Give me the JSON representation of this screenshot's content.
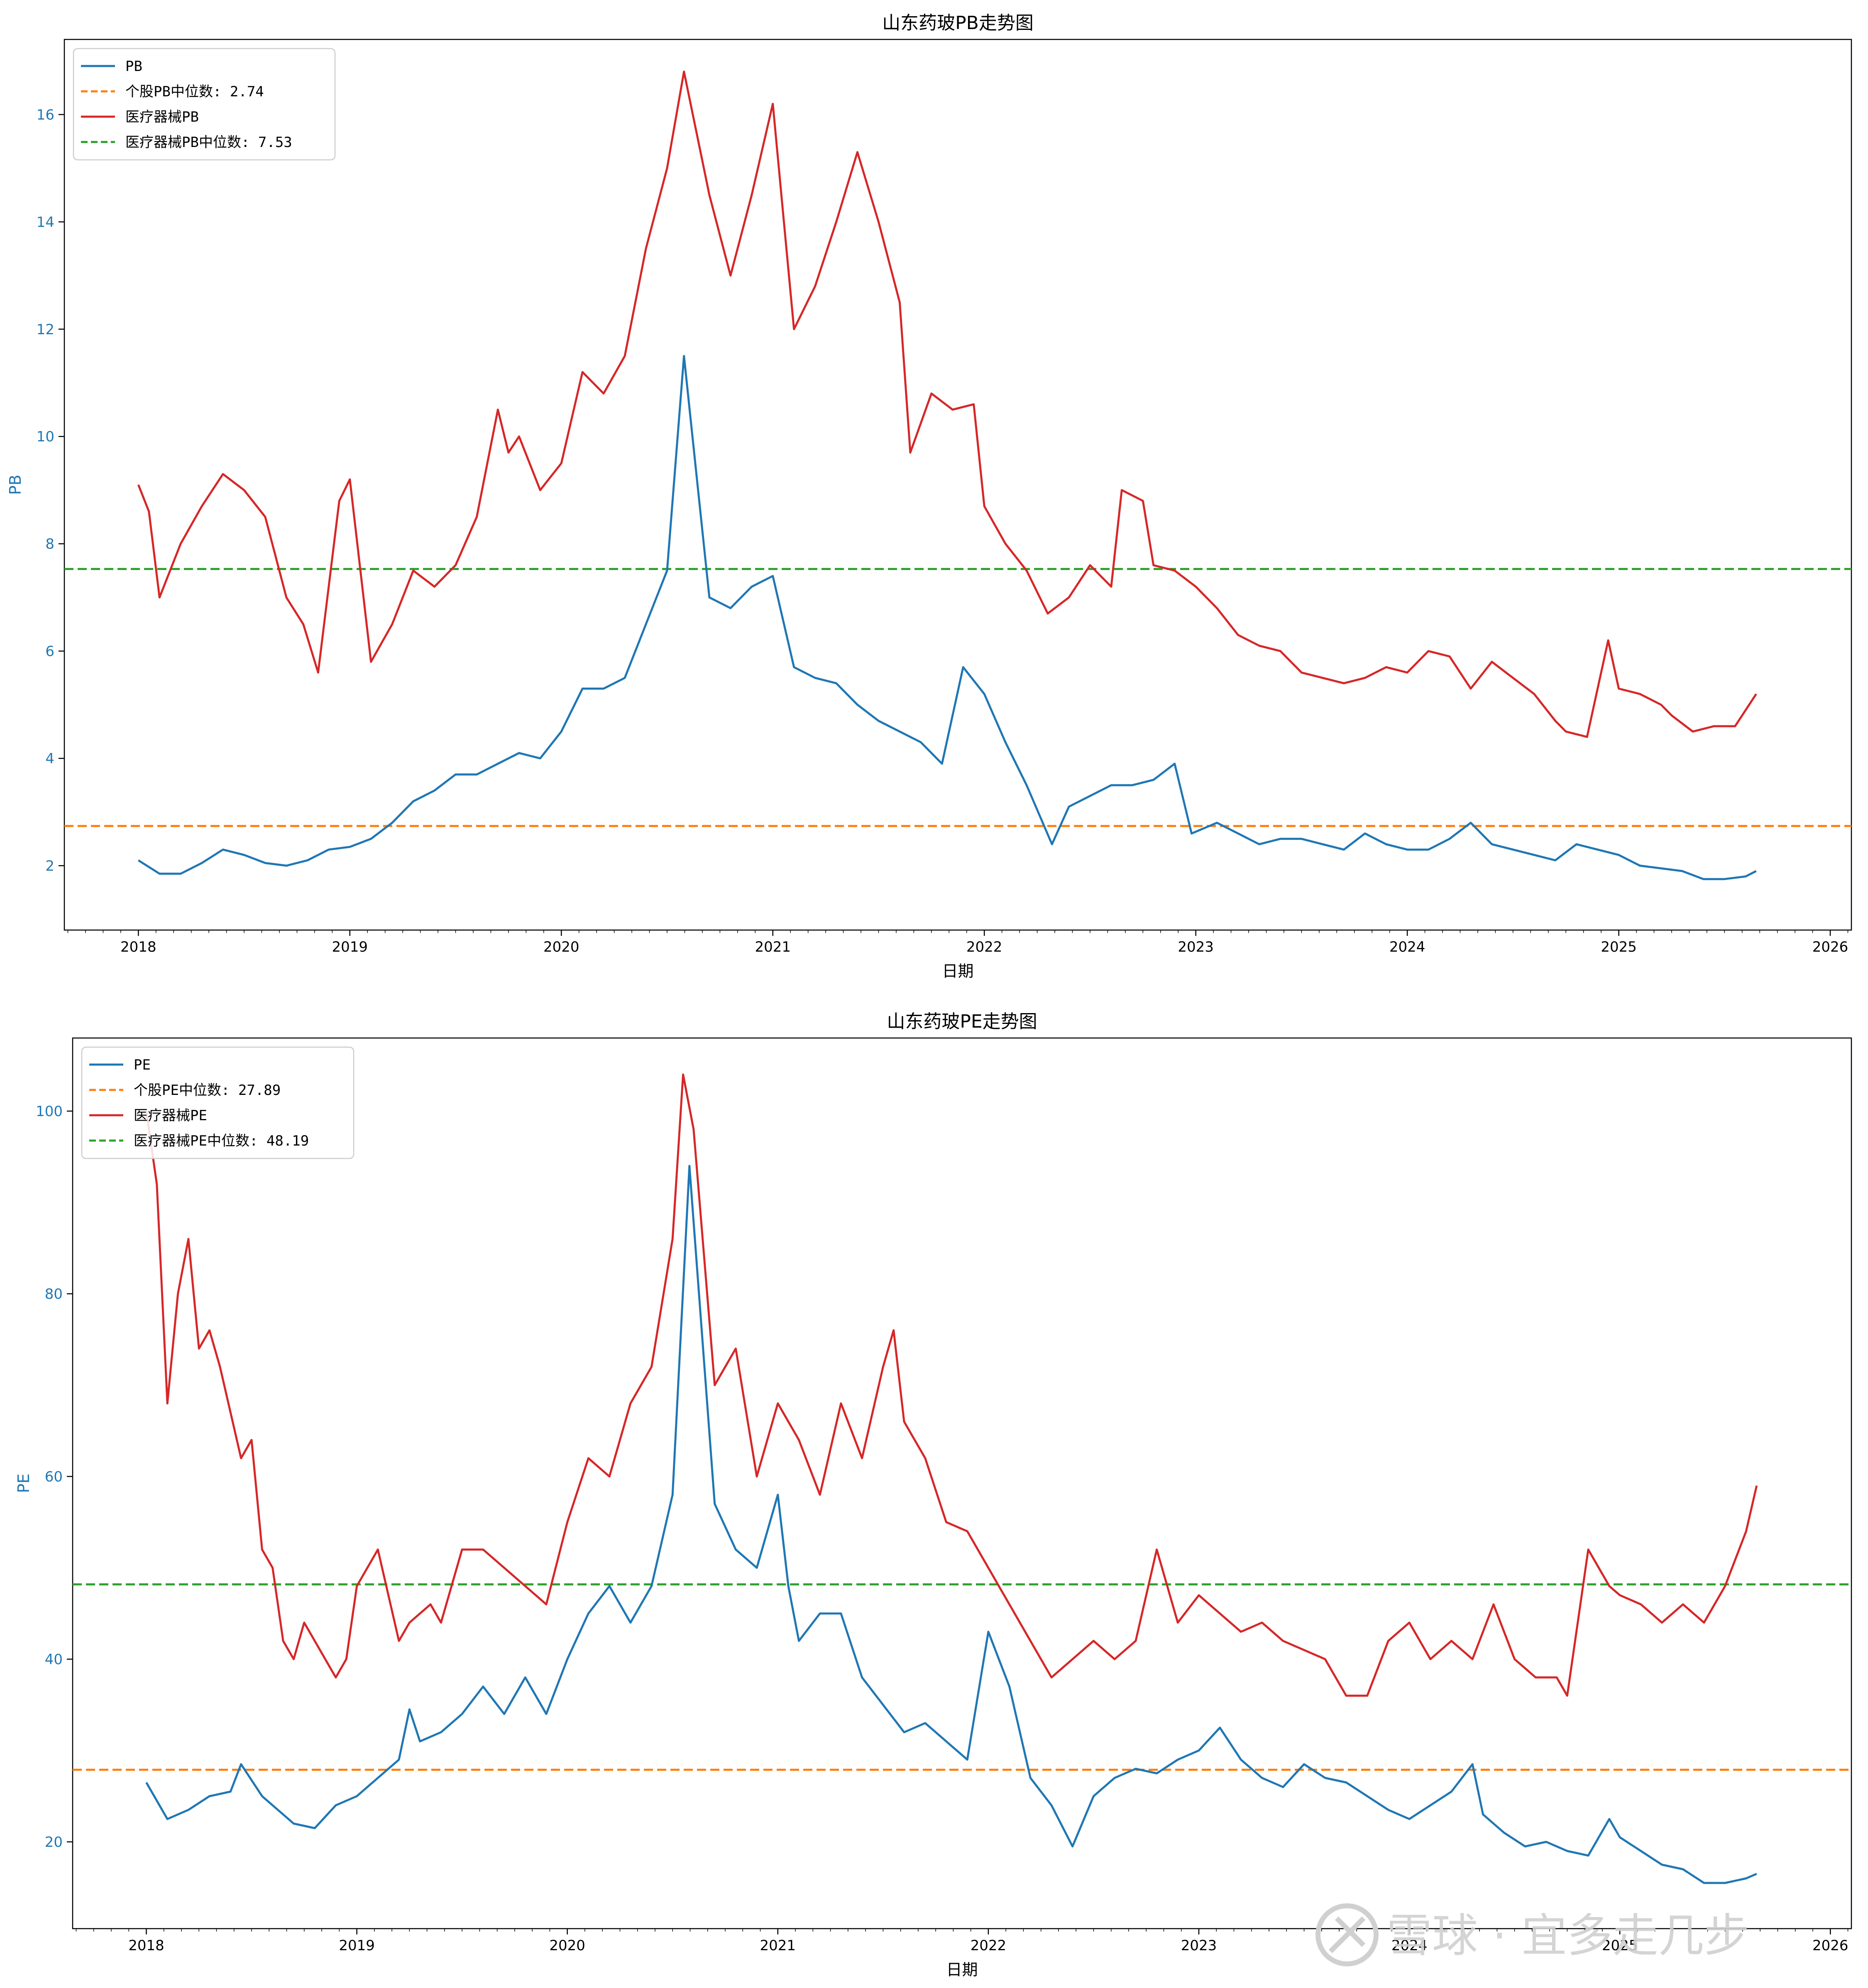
{
  "colors": {
    "stock": "#1f77b4",
    "stock_median": "#ff7f0e",
    "industry": "#d62728",
    "industry_median": "#2ca02c"
  },
  "watermark": {
    "text": "雪球 · 宜多走几步",
    "icon": "snowball-logo-icon"
  },
  "chart_data": [
    {
      "type": "line",
      "title": "山东药玻PB走势图",
      "xlabel": "日期",
      "ylabel": "PB",
      "xlim": [
        2017.65,
        2026.1
      ],
      "ylim": [
        0.8,
        17.4
      ],
      "x_ticks": [
        2018,
        2019,
        2020,
        2021,
        2022,
        2023,
        2024,
        2025,
        2026
      ],
      "y_ticks": [
        2,
        4,
        6,
        8,
        10,
        12,
        14,
        16
      ],
      "grid": false,
      "legend_position": "upper-left",
      "legend": [
        "PB",
        "个股PB中位数: 2.74",
        "医疗器械PB",
        "医疗器械PB中位数: 7.53"
      ],
      "hlines": [
        {
          "name": "个股PB中位数: 2.74",
          "value": 2.74,
          "style": "dashed"
        },
        {
          "name": "医疗器械PB中位数: 7.53",
          "value": 7.53,
          "style": "dashed"
        }
      ],
      "series": [
        {
          "name": "PB",
          "x": [
            2018.0,
            2018.1,
            2018.2,
            2018.3,
            2018.4,
            2018.5,
            2018.6,
            2018.7,
            2018.8,
            2018.9,
            2019.0,
            2019.1,
            2019.2,
            2019.3,
            2019.4,
            2019.5,
            2019.6,
            2019.7,
            2019.8,
            2019.9,
            2020.0,
            2020.1,
            2020.2,
            2020.3,
            2020.4,
            2020.5,
            2020.58,
            2020.7,
            2020.8,
            2020.9,
            2021.0,
            2021.1,
            2021.2,
            2021.3,
            2021.4,
            2021.5,
            2021.6,
            2021.7,
            2021.8,
            2021.9,
            2022.0,
            2022.1,
            2022.2,
            2022.32,
            2022.4,
            2022.5,
            2022.6,
            2022.7,
            2022.8,
            2022.9,
            2022.98,
            2023.1,
            2023.2,
            2023.3,
            2023.4,
            2023.5,
            2023.6,
            2023.7,
            2023.8,
            2023.9,
            2024.0,
            2024.1,
            2024.2,
            2024.3,
            2024.4,
            2024.5,
            2024.6,
            2024.7,
            2024.8,
            2024.9,
            2025.0,
            2025.1,
            2025.2,
            2025.3,
            2025.4,
            2025.5,
            2025.6,
            2025.65
          ],
          "y": [
            2.1,
            1.85,
            1.85,
            2.05,
            2.3,
            2.2,
            2.05,
            2.0,
            2.1,
            2.3,
            2.35,
            2.5,
            2.8,
            3.2,
            3.4,
            3.7,
            3.7,
            3.9,
            4.1,
            4.0,
            4.5,
            5.3,
            5.3,
            5.5,
            6.5,
            7.5,
            11.5,
            7.0,
            6.8,
            7.2,
            7.4,
            5.7,
            5.5,
            5.4,
            5.0,
            4.7,
            4.5,
            4.3,
            3.9,
            5.7,
            5.2,
            4.3,
            3.5,
            2.4,
            3.1,
            3.3,
            3.5,
            3.5,
            3.6,
            3.9,
            2.6,
            2.8,
            2.6,
            2.4,
            2.5,
            2.5,
            2.4,
            2.3,
            2.6,
            2.4,
            2.3,
            2.3,
            2.5,
            2.8,
            2.4,
            2.3,
            2.2,
            2.1,
            2.4,
            2.3,
            2.2,
            2.0,
            1.95,
            1.9,
            1.75,
            1.75,
            1.8,
            1.9
          ]
        },
        {
          "name": "医疗器械PB",
          "x": [
            2018.0,
            2018.05,
            2018.1,
            2018.2,
            2018.3,
            2018.4,
            2018.5,
            2018.6,
            2018.7,
            2018.78,
            2018.85,
            2018.95,
            2019.0,
            2019.1,
            2019.2,
            2019.3,
            2019.4,
            2019.5,
            2019.6,
            2019.7,
            2019.75,
            2019.8,
            2019.9,
            2020.0,
            2020.1,
            2020.2,
            2020.3,
            2020.4,
            2020.5,
            2020.58,
            2020.7,
            2020.8,
            2020.9,
            2021.0,
            2021.1,
            2021.2,
            2021.3,
            2021.4,
            2021.5,
            2021.6,
            2021.65,
            2021.75,
            2021.85,
            2021.95,
            2022.0,
            2022.1,
            2022.2,
            2022.3,
            2022.4,
            2022.5,
            2022.6,
            2022.65,
            2022.75,
            2022.8,
            2022.9,
            2023.0,
            2023.1,
            2023.2,
            2023.3,
            2023.4,
            2023.5,
            2023.6,
            2023.7,
            2023.8,
            2023.9,
            2024.0,
            2024.1,
            2024.2,
            2024.3,
            2024.4,
            2024.5,
            2024.6,
            2024.7,
            2024.75,
            2024.85,
            2024.95,
            2025.0,
            2025.1,
            2025.2,
            2025.25,
            2025.35,
            2025.45,
            2025.55,
            2025.65
          ],
          "y": [
            9.1,
            8.6,
            7.0,
            8.0,
            8.7,
            9.3,
            9.0,
            8.5,
            7.0,
            6.5,
            5.6,
            8.8,
            9.2,
            5.8,
            6.5,
            7.5,
            7.2,
            7.6,
            8.5,
            10.5,
            9.7,
            10.0,
            9.0,
            9.5,
            11.2,
            10.8,
            11.5,
            13.5,
            15.0,
            16.8,
            14.5,
            13.0,
            14.5,
            16.2,
            12.0,
            12.8,
            14.0,
            15.3,
            14.0,
            12.5,
            9.7,
            10.8,
            10.5,
            10.6,
            8.7,
            8.0,
            7.5,
            6.7,
            7.0,
            7.6,
            7.2,
            9.0,
            8.8,
            7.6,
            7.5,
            7.2,
            6.8,
            6.3,
            6.1,
            6.0,
            5.6,
            5.5,
            5.4,
            5.5,
            5.7,
            5.6,
            6.0,
            5.9,
            5.3,
            5.8,
            5.5,
            5.2,
            4.7,
            4.5,
            4.4,
            6.2,
            5.3,
            5.2,
            5.0,
            4.8,
            4.5,
            4.6,
            4.6,
            5.2
          ]
        }
      ]
    },
    {
      "type": "line",
      "title": "山东药玻PE走势图",
      "xlabel": "日期",
      "ylabel": "PE",
      "xlim": [
        2017.65,
        2026.1
      ],
      "ylim": [
        10.5,
        108
      ],
      "x_ticks": [
        2018,
        2019,
        2020,
        2021,
        2022,
        2023,
        2024,
        2025,
        2026
      ],
      "y_ticks": [
        20,
        40,
        60,
        80,
        100
      ],
      "grid": false,
      "legend_position": "upper-left",
      "legend": [
        "PE",
        "个股PE中位数: 27.89",
        "医疗器械PE",
        "医疗器械PE中位数: 48.19"
      ],
      "hlines": [
        {
          "name": "个股PE中位数: 27.89",
          "value": 27.89,
          "style": "dashed"
        },
        {
          "name": "医疗器械PE中位数: 48.19",
          "value": 48.19,
          "style": "dashed"
        }
      ],
      "series": [
        {
          "name": "PE",
          "x": [
            2018.0,
            2018.1,
            2018.2,
            2018.3,
            2018.4,
            2018.45,
            2018.55,
            2018.6,
            2018.7,
            2018.8,
            2018.9,
            2019.0,
            2019.1,
            2019.2,
            2019.25,
            2019.3,
            2019.4,
            2019.5,
            2019.6,
            2019.7,
            2019.8,
            2019.9,
            2020.0,
            2020.1,
            2020.2,
            2020.3,
            2020.4,
            2020.5,
            2020.58,
            2020.7,
            2020.8,
            2020.9,
            2021.0,
            2021.05,
            2021.1,
            2021.2,
            2021.3,
            2021.4,
            2021.5,
            2021.6,
            2021.7,
            2021.8,
            2021.9,
            2022.0,
            2022.1,
            2022.2,
            2022.3,
            2022.4,
            2022.5,
            2022.6,
            2022.7,
            2022.8,
            2022.9,
            2023.0,
            2023.1,
            2023.2,
            2023.3,
            2023.4,
            2023.5,
            2023.6,
            2023.7,
            2023.8,
            2023.9,
            2024.0,
            2024.1,
            2024.2,
            2024.3,
            2024.35,
            2024.45,
            2024.55,
            2024.65,
            2024.75,
            2024.85,
            2024.95,
            2025.0,
            2025.1,
            2025.2,
            2025.3,
            2025.4,
            2025.5,
            2025.6,
            2025.65
          ],
          "y": [
            26.5,
            22.5,
            23.5,
            25.0,
            25.5,
            28.5,
            25.0,
            24.0,
            22.0,
            21.5,
            24.0,
            25.0,
            27.0,
            29.0,
            34.5,
            31.0,
            32.0,
            34.0,
            37.0,
            34.0,
            38.0,
            34.0,
            40.0,
            45.0,
            48.0,
            44.0,
            48.0,
            58.0,
            94.0,
            57.0,
            52.0,
            50.0,
            58.0,
            48.0,
            42.0,
            45.0,
            45.0,
            38.0,
            35.0,
            32.0,
            33.0,
            31.0,
            29.0,
            43.0,
            37.0,
            27.0,
            24.0,
            19.5,
            25.0,
            27.0,
            28.0,
            27.5,
            29.0,
            30.0,
            32.5,
            29.0,
            27.0,
            26.0,
            28.5,
            27.0,
            26.5,
            25.0,
            23.5,
            22.5,
            24.0,
            25.5,
            28.5,
            23.0,
            21.0,
            19.5,
            20.0,
            19.0,
            18.5,
            22.5,
            20.5,
            19.0,
            17.5,
            17.0,
            15.5,
            15.5,
            16.0,
            16.5
          ]
        },
        {
          "name": "医疗器械PE",
          "x": [
            2018.0,
            2018.05,
            2018.1,
            2018.15,
            2018.2,
            2018.25,
            2018.3,
            2018.35,
            2018.45,
            2018.5,
            2018.55,
            2018.6,
            2018.65,
            2018.7,
            2018.75,
            2018.8,
            2018.85,
            2018.9,
            2018.95,
            2019.0,
            2019.1,
            2019.2,
            2019.25,
            2019.35,
            2019.4,
            2019.5,
            2019.6,
            2019.7,
            2019.8,
            2019.9,
            2020.0,
            2020.1,
            2020.2,
            2020.3,
            2020.4,
            2020.5,
            2020.55,
            2020.6,
            2020.7,
            2020.8,
            2020.9,
            2021.0,
            2021.1,
            2021.2,
            2021.3,
            2021.4,
            2021.5,
            2021.55,
            2021.6,
            2021.7,
            2021.8,
            2021.9,
            2022.0,
            2022.1,
            2022.2,
            2022.3,
            2022.4,
            2022.5,
            2022.6,
            2022.7,
            2022.8,
            2022.9,
            2023.0,
            2023.1,
            2023.2,
            2023.3,
            2023.4,
            2023.5,
            2023.6,
            2023.7,
            2023.8,
            2023.9,
            2024.0,
            2024.1,
            2024.2,
            2024.3,
            2024.4,
            2024.5,
            2024.6,
            2024.7,
            2024.75,
            2024.85,
            2024.95,
            2025.0,
            2025.1,
            2025.2,
            2025.3,
            2025.4,
            2025.5,
            2025.6,
            2025.65
          ],
          "y": [
            100,
            92,
            68,
            80,
            86,
            74,
            76,
            72,
            62,
            64,
            52,
            50,
            42,
            40,
            44,
            42,
            40,
            38,
            40,
            48,
            52,
            42,
            44,
            46,
            44,
            52,
            52,
            50,
            48,
            46,
            55,
            62,
            60,
            68,
            72,
            86,
            104,
            98,
            70,
            74,
            60,
            68,
            64,
            58,
            68,
            62,
            72,
            76,
            66,
            62,
            55,
            54,
            50,
            46,
            42,
            38,
            40,
            42,
            40,
            42,
            52,
            44,
            47,
            45,
            43,
            44,
            42,
            41,
            40,
            36,
            36,
            42,
            44,
            40,
            42,
            40,
            46,
            40,
            38,
            38,
            36,
            52,
            48,
            47,
            46,
            44,
            46,
            44,
            48,
            54,
            59
          ]
        }
      ]
    }
  ]
}
